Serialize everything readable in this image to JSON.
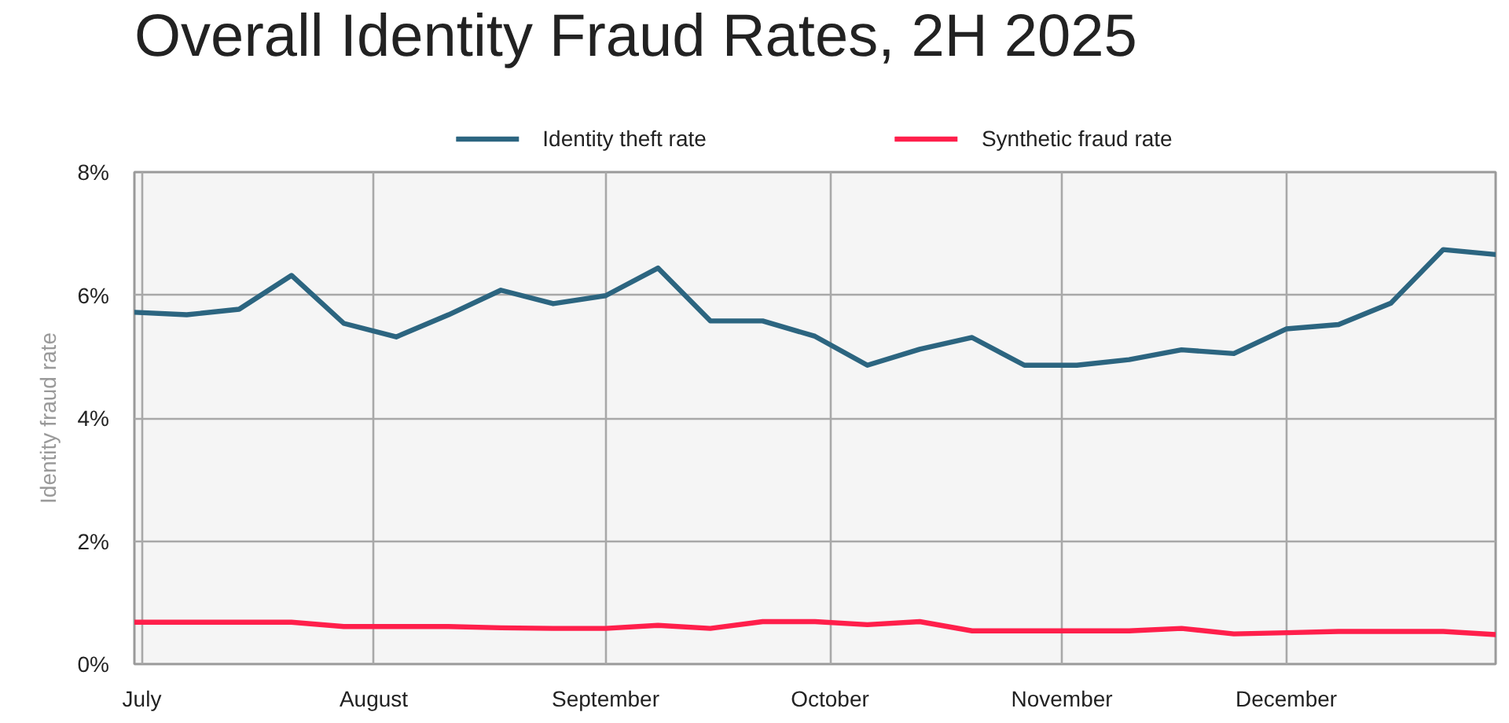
{
  "chart_data": {
    "type": "line",
    "title": "Overall Identity Fraud Rates, 2H 2025",
    "ylabel": "Identity fraud rate",
    "x": [
      "2025-06-30",
      "2025-07-07",
      "2025-07-14",
      "2025-07-21",
      "2025-07-28",
      "2025-08-04",
      "2025-08-11",
      "2025-08-18",
      "2025-08-25",
      "2025-09-01",
      "2025-09-08",
      "2025-09-15",
      "2025-09-22",
      "2025-09-29",
      "2025-10-06",
      "2025-10-13",
      "2025-10-20",
      "2025-10-27",
      "2025-11-03",
      "2025-11-10",
      "2025-11-17",
      "2025-11-24",
      "2025-12-01",
      "2025-12-08",
      "2025-12-15",
      "2025-12-22",
      "2025-12-29"
    ],
    "series": [
      {
        "name": "Identity theft rate",
        "color": "#2c6580",
        "values": [
          5.72,
          5.68,
          5.77,
          6.32,
          5.54,
          5.32,
          5.68,
          6.08,
          5.86,
          5.99,
          6.44,
          5.58,
          5.58,
          5.33,
          4.86,
          5.12,
          5.31,
          4.86,
          4.86,
          4.95,
          5.11,
          5.05,
          5.45,
          5.52,
          5.87,
          6.74,
          6.66
        ]
      },
      {
        "name": "Synthetic fraud rate",
        "color": "#ff1f4b",
        "values": [
          0.68,
          0.68,
          0.68,
          0.68,
          0.61,
          0.61,
          0.61,
          0.59,
          0.58,
          0.58,
          0.63,
          0.58,
          0.69,
          0.69,
          0.64,
          0.69,
          0.54,
          0.54,
          0.54,
          0.54,
          0.58,
          0.49,
          0.51,
          0.53,
          0.53,
          0.53,
          0.48
        ]
      }
    ],
    "xlim": [
      "2025-06-30",
      "2025-12-29"
    ],
    "xticks": [
      {
        "value": "2025-07-01",
        "label": "July"
      },
      {
        "value": "2025-08-01",
        "label": "August"
      },
      {
        "value": "2025-09-01",
        "label": "September"
      },
      {
        "value": "2025-10-01",
        "label": "October"
      },
      {
        "value": "2025-11-01",
        "label": "November"
      },
      {
        "value": "2025-12-01",
        "label": "December"
      }
    ],
    "ylim": [
      0,
      8
    ],
    "yticks": [
      {
        "value": 0,
        "label": "0%"
      },
      {
        "value": 2,
        "label": "2%"
      },
      {
        "value": 4,
        "label": "4%"
      },
      {
        "value": 6,
        "label": "6%"
      },
      {
        "value": 8,
        "label": "8%"
      }
    ],
    "grid": true,
    "legend": "top"
  }
}
